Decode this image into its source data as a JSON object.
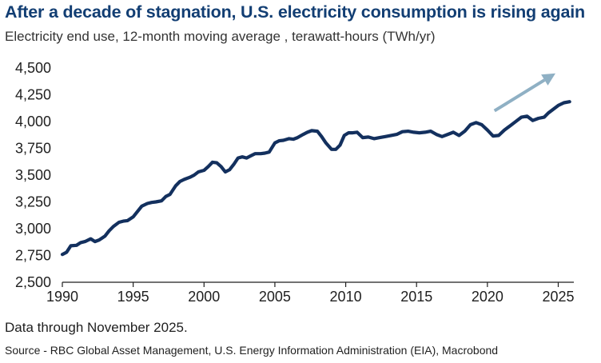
{
  "header": {
    "title": "After a decade of stagnation, U.S. electricity consumption is rising again",
    "subtitle": "Electricity end use, 12-month moving average , terawatt-hours (TWh/yr)"
  },
  "footer": {
    "note": "Data through November 2025.",
    "source": "Source - RBC Global Asset Management, U.S. Energy Information Administration (EIA), Macrobond"
  },
  "colors": {
    "line": "#13305e",
    "arrow": "#8fb0c4",
    "title": "#123e73",
    "axis": "#1f1f1f"
  },
  "chart_data": {
    "type": "line",
    "title": "After a decade of stagnation, U.S. electricity consumption is rising again",
    "ylabel": "terawatt-hours (TWh/yr)",
    "xlabel": "",
    "xlim": [
      1990,
      2026.1
    ],
    "ylim": [
      2500,
      4500
    ],
    "yticks": [
      2500,
      2750,
      3000,
      3250,
      3500,
      3750,
      4000,
      4250,
      4500
    ],
    "ytick_labels": [
      "2,500",
      "2,750",
      "3,000",
      "3,250",
      "3,500",
      "3,750",
      "4,000",
      "4,250",
      "4,500"
    ],
    "xticks": [
      1990,
      1995,
      2000,
      2005,
      2010,
      2015,
      2020,
      2025
    ],
    "xtick_labels": [
      "1990",
      "1995",
      "2000",
      "2005",
      "2010",
      "2015",
      "2020",
      "2025"
    ],
    "grid": false,
    "series": [
      {
        "name": "Electricity end use, 12-month moving average",
        "x": [
          1990.0,
          1990.3,
          1990.6,
          1991.0,
          1991.3,
          1991.6,
          1992.0,
          1992.3,
          1992.6,
          1993.0,
          1993.3,
          1993.6,
          1994.0,
          1994.3,
          1994.6,
          1995.0,
          1995.3,
          1995.6,
          1996.0,
          1996.3,
          1996.6,
          1997.0,
          1997.3,
          1997.6,
          1998.0,
          1998.3,
          1998.6,
          1999.0,
          1999.3,
          1999.6,
          2000.0,
          2000.3,
          2000.6,
          2000.9,
          2001.2,
          2001.5,
          2001.8,
          2002.1,
          2002.4,
          2002.7,
          2003.0,
          2003.3,
          2003.6,
          2004.0,
          2004.3,
          2004.6,
          2005.0,
          2005.3,
          2005.6,
          2006.0,
          2006.3,
          2006.6,
          2007.0,
          2007.3,
          2007.6,
          2008.0,
          2008.3,
          2008.6,
          2009.0,
          2009.3,
          2009.6,
          2009.9,
          2010.2,
          2010.5,
          2010.8,
          2011.2,
          2011.6,
          2012.0,
          2012.4,
          2012.8,
          2013.2,
          2013.6,
          2014.0,
          2014.4,
          2014.8,
          2015.2,
          2015.6,
          2016.0,
          2016.4,
          2016.8,
          2017.2,
          2017.6,
          2018.0,
          2018.4,
          2018.8,
          2019.2,
          2019.6,
          2020.0,
          2020.4,
          2020.8,
          2021.2,
          2021.6,
          2022.0,
          2022.4,
          2022.8,
          2023.2,
          2023.6,
          2024.0,
          2024.3,
          2024.6,
          2025.0,
          2025.4,
          2025.8
        ],
        "y": [
          2760,
          2780,
          2840,
          2845,
          2870,
          2880,
          2905,
          2880,
          2895,
          2930,
          2980,
          3020,
          3060,
          3070,
          3075,
          3110,
          3160,
          3210,
          3235,
          3245,
          3250,
          3260,
          3300,
          3320,
          3400,
          3440,
          3460,
          3480,
          3500,
          3530,
          3545,
          3580,
          3620,
          3615,
          3580,
          3530,
          3550,
          3600,
          3660,
          3670,
          3660,
          3680,
          3700,
          3700,
          3705,
          3715,
          3800,
          3820,
          3825,
          3840,
          3835,
          3850,
          3880,
          3900,
          3915,
          3910,
          3860,
          3800,
          3740,
          3740,
          3780,
          3870,
          3895,
          3895,
          3900,
          3850,
          3855,
          3840,
          3850,
          3860,
          3870,
          3880,
          3905,
          3910,
          3900,
          3895,
          3900,
          3910,
          3880,
          3860,
          3880,
          3900,
          3870,
          3910,
          3970,
          3990,
          3970,
          3920,
          3865,
          3870,
          3920,
          3960,
          4000,
          4040,
          4050,
          4010,
          4030,
          4040,
          4080,
          4110,
          4150,
          4175,
          4185
        ]
      }
    ],
    "annotation": {
      "type": "arrow",
      "meaning": "rising trend",
      "from": [
        2020.5,
        4100
      ],
      "to": [
        2024.8,
        4450
      ]
    }
  }
}
